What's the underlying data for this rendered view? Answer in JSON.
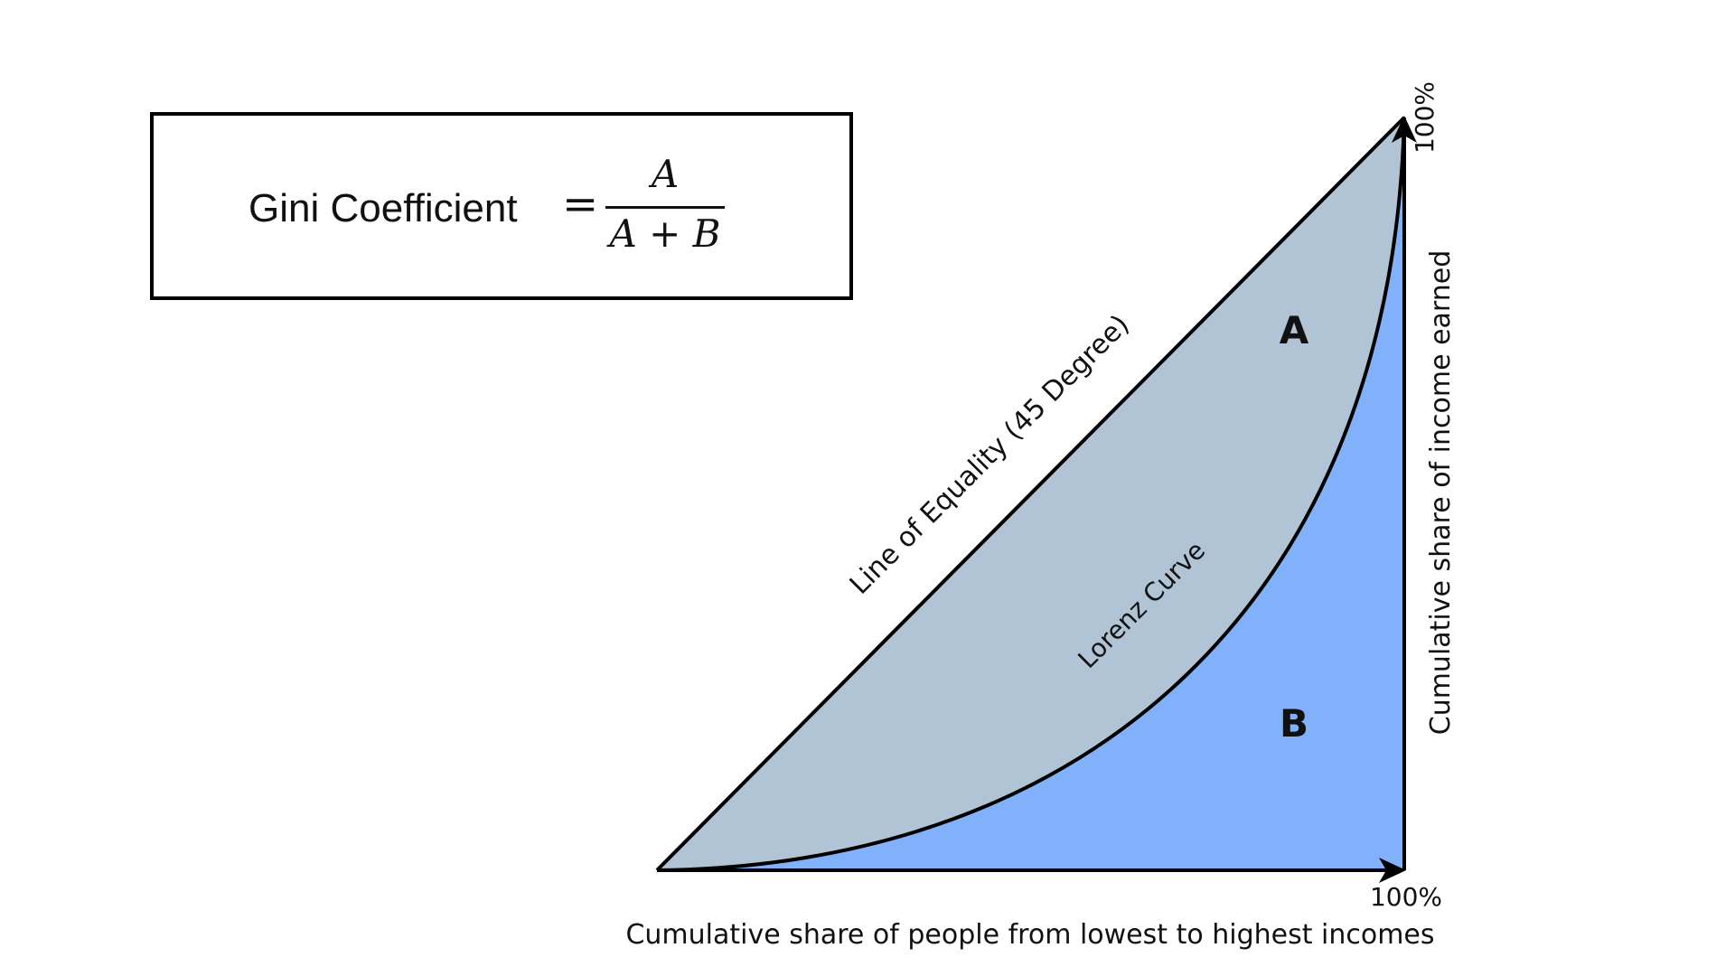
{
  "formula": {
    "label": "Gini Coefficient",
    "equals": "=",
    "numerator": "A",
    "denominator": "A + B"
  },
  "regions": {
    "a_label": "A",
    "b_label": "B",
    "a_color": "#b0c4d6",
    "b_color": "#80b1fa"
  },
  "lines": {
    "equality_label": "Line of Equality (45 Degree)",
    "lorenz_label": "Lorenz Curve"
  },
  "axes": {
    "x_end_label": "100%",
    "y_end_label": "100%",
    "x_title": "Cumulative share of people from lowest to highest incomes",
    "y_title": "Cumulative share of income earned"
  }
}
